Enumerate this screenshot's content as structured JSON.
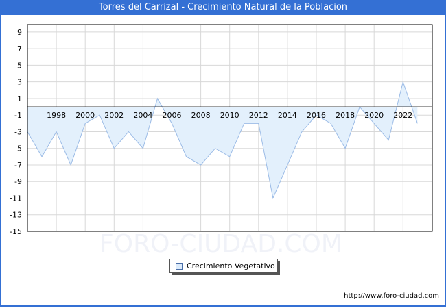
{
  "window": {
    "title": "Torres del Carrizal - Crecimiento Natural de la Poblacion"
  },
  "legend": {
    "label": "Crecimiento Vegetativo",
    "swatch_color": "#dcebfb"
  },
  "footer": {
    "url": "http://www.foro-ciudad.com"
  },
  "watermark": "FORO-CIUDAD.COM",
  "colors": {
    "title_bar": "#3470d4",
    "area_fill": "#e3f0fc",
    "line": "#9bbbe6",
    "grid": "#d8d8d8"
  },
  "chart_data": {
    "type": "area",
    "title": "Torres del Carrizal - Crecimiento Natural de la Poblacion",
    "xlabel": "",
    "ylabel": "",
    "x": [
      1996,
      1997,
      1998,
      1999,
      2000,
      2001,
      2002,
      2003,
      2004,
      2005,
      2006,
      2007,
      2008,
      2009,
      2010,
      2011,
      2012,
      2013,
      2014,
      2015,
      2016,
      2017,
      2018,
      2019,
      2020,
      2021,
      2022,
      2023
    ],
    "series": [
      {
        "name": "Crecimiento Vegetativo",
        "values": [
          -3,
          -6,
          -3,
          -7,
          -2,
          -1,
          -5,
          -3,
          -5,
          1,
          -2,
          -6,
          -7,
          -5,
          -6,
          -2,
          -2,
          -11,
          -7,
          -3,
          -1,
          -2,
          -5,
          0,
          -2,
          -4,
          3,
          -2
        ]
      }
    ],
    "x_tick_labels": [
      "1998",
      "2000",
      "2002",
      "2004",
      "2006",
      "2008",
      "2010",
      "2012",
      "2014",
      "2016",
      "2018",
      "2020",
      "2022"
    ],
    "y_tick_labels": [
      "9",
      "7",
      "5",
      "3",
      "1",
      "-1",
      "-3",
      "-5",
      "-7",
      "-9",
      "-11",
      "-13",
      "-15"
    ],
    "ylim": [
      -15,
      10
    ],
    "xlim": [
      1996,
      2024
    ],
    "grid": true,
    "legend_position": "bottom-center"
  }
}
